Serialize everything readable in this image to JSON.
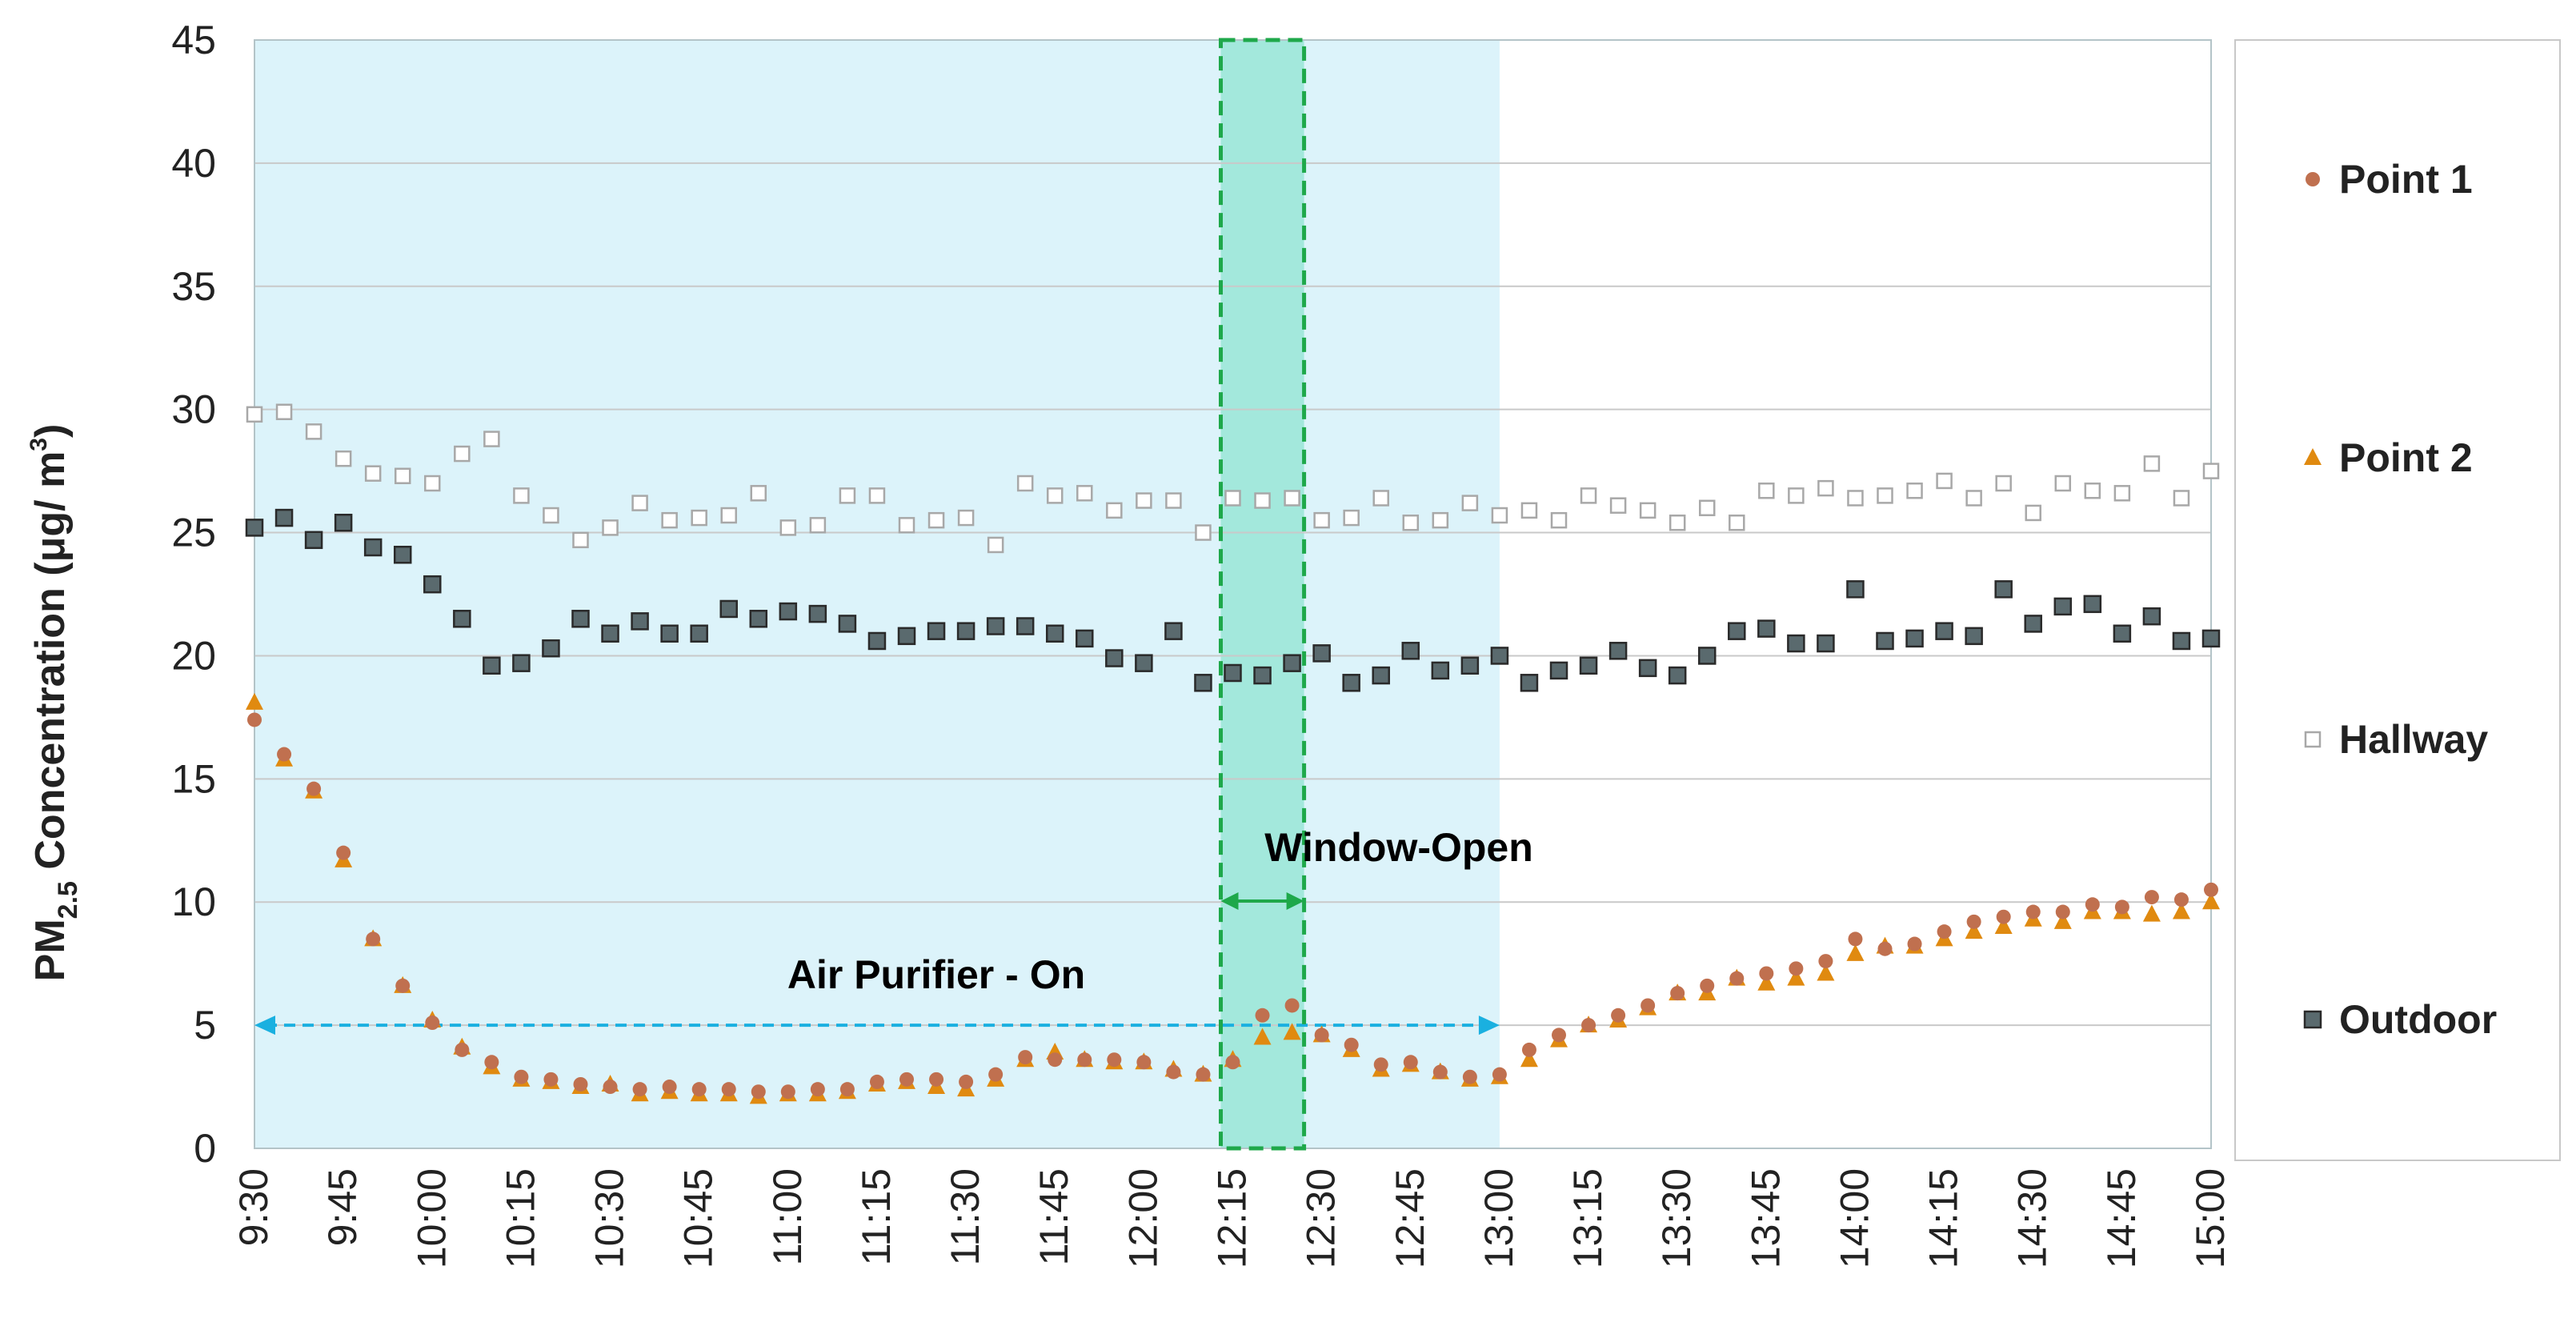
{
  "chart_data": {
    "type": "scatter",
    "title": "",
    "ylabel_main": "PM",
    "ylabel_sub": "2.5",
    "ylabel_rest": " Concentration (μg/ m",
    "ylabel_sup": "3",
    "ylabel_close": ")",
    "xlabel": "",
    "ylim": [
      0,
      45
    ],
    "yticks": [
      0,
      5,
      10,
      15,
      20,
      25,
      30,
      35,
      40,
      45
    ],
    "x_range_minutes": [
      570,
      900
    ],
    "x_tick_labels": [
      "9:30",
      "9:45",
      "10:00",
      "10:15",
      "10:30",
      "10:45",
      "11:00",
      "11:15",
      "11:30",
      "11:45",
      "12:00",
      "12:15",
      "12:30",
      "12:45",
      "13:00",
      "13:15",
      "13:30",
      "13:45",
      "14:00",
      "14:15",
      "14:30",
      "14:45",
      "15:00"
    ],
    "x_tick_minutes": [
      570,
      585,
      600,
      615,
      630,
      645,
      660,
      675,
      690,
      705,
      720,
      735,
      750,
      765,
      780,
      795,
      810,
      825,
      840,
      855,
      870,
      885,
      900
    ],
    "sample_interval_minutes": 5,
    "legend_position": "right",
    "regions": {
      "purifier": {
        "start": 570,
        "end": 780,
        "label": "Air Purifier - On",
        "color": "#dcf3fa",
        "arrow_color": "#1ab0e0",
        "arrow_y": 5
      },
      "window": {
        "start": 735,
        "end": 745,
        "label": "Window-Open",
        "color": "#a3e8dc",
        "border_color": "#1ea84a"
      }
    },
    "series": [
      {
        "name": "Point 1",
        "marker": "circle",
        "color": "#c0704f",
        "values": [
          17.4,
          16.0,
          14.6,
          12.0,
          8.5,
          6.6,
          5.1,
          4.0,
          3.5,
          2.9,
          2.8,
          2.6,
          2.5,
          2.4,
          2.5,
          2.4,
          2.4,
          2.3,
          2.3,
          2.4,
          2.4,
          2.7,
          2.8,
          2.8,
          2.7,
          3.0,
          3.7,
          3.6,
          3.6,
          3.6,
          3.5,
          3.1,
          3.0,
          3.5,
          5.4,
          5.8,
          4.6,
          4.2,
          3.4,
          3.5,
          3.1,
          2.9,
          3.0,
          4.0,
          4.6,
          5.0,
          5.4,
          5.8,
          6.3,
          6.6,
          6.9,
          7.1,
          7.3,
          7.6,
          8.5,
          8.1,
          8.3,
          8.8,
          9.2,
          9.4,
          9.6,
          9.6,
          9.9,
          9.8,
          10.2,
          10.1,
          10.5
        ]
      },
      {
        "name": "Point 2",
        "marker": "triangle",
        "color": "#e08a10",
        "values": [
          18.1,
          15.8,
          14.5,
          11.7,
          8.5,
          6.6,
          5.2,
          4.1,
          3.3,
          2.8,
          2.7,
          2.5,
          2.6,
          2.2,
          2.3,
          2.2,
          2.2,
          2.1,
          2.2,
          2.2,
          2.3,
          2.6,
          2.7,
          2.5,
          2.4,
          2.8,
          3.6,
          3.9,
          3.6,
          3.5,
          3.5,
          3.2,
          3.0,
          3.6,
          4.5,
          4.7,
          4.6,
          4.0,
          3.2,
          3.4,
          3.1,
          2.8,
          2.9,
          3.6,
          4.4,
          5.0,
          5.2,
          5.7,
          6.3,
          6.3,
          6.9,
          6.7,
          6.9,
          7.1,
          7.9,
          8.2,
          8.2,
          8.5,
          8.8,
          9.0,
          9.3,
          9.2,
          9.6,
          9.6,
          9.5,
          9.6,
          10.0
        ]
      },
      {
        "name": "Hallway",
        "marker": "square-open",
        "color": "#a8a8a8",
        "values": [
          29.8,
          29.9,
          29.1,
          28.0,
          27.4,
          27.3,
          27.0,
          28.2,
          28.8,
          26.5,
          25.7,
          24.7,
          25.2,
          26.2,
          25.5,
          25.6,
          25.7,
          26.6,
          25.2,
          25.3,
          26.5,
          26.5,
          25.3,
          25.5,
          25.6,
          24.5,
          27.0,
          26.5,
          26.6,
          25.9,
          26.3,
          26.3,
          25.0,
          26.4,
          26.3,
          26.4,
          25.5,
          25.6,
          26.4,
          25.4,
          25.5,
          26.2,
          25.7,
          25.9,
          25.5,
          26.5,
          26.1,
          25.9,
          25.4,
          26.0,
          25.4,
          26.7,
          26.5,
          26.8,
          26.4,
          26.5,
          26.7,
          27.1,
          26.4,
          27.0,
          25.8,
          27.0,
          26.7,
          26.6,
          27.8,
          26.4,
          27.5
        ]
      },
      {
        "name": "Outdoor",
        "marker": "square",
        "color": "#5a6a6e",
        "values": [
          25.2,
          25.6,
          24.7,
          25.4,
          24.4,
          24.1,
          22.9,
          21.5,
          19.6,
          19.7,
          20.3,
          21.5,
          20.9,
          21.4,
          20.9,
          20.9,
          21.9,
          21.5,
          21.8,
          21.7,
          21.3,
          20.6,
          20.8,
          21.0,
          21.0,
          21.2,
          21.2,
          20.9,
          20.7,
          19.9,
          19.7,
          21.0,
          18.9,
          19.3,
          19.2,
          19.7,
          20.1,
          18.9,
          19.2,
          20.2,
          19.4,
          19.6,
          20.0,
          18.9,
          19.4,
          19.6,
          20.2,
          19.5,
          19.2,
          20.0,
          21.0,
          21.1,
          20.5,
          20.5,
          22.7,
          20.6,
          20.7,
          21.0,
          20.8,
          22.7,
          21.3,
          22.0,
          22.1,
          20.9,
          21.6,
          20.6,
          20.7
        ]
      }
    ]
  }
}
